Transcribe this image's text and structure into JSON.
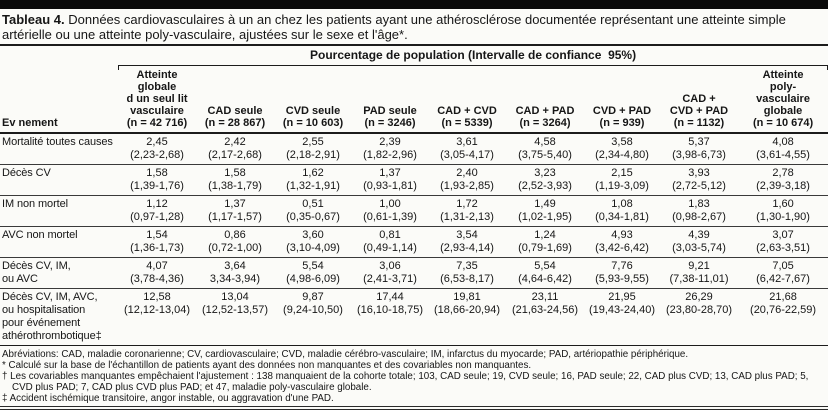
{
  "title": {
    "label": "Tableau 4.",
    "text": "Données cardiovasculaires à un an chez les patients ayant une athérosclérose documentée représentant une atteinte simple artérielle ou une atteinte poly-vasculaire, ajustées sur le sexe et l'âge*."
  },
  "table": {
    "spanner": "Pourcentage de population (Intervalle de confiance  95%)",
    "row_header": "Ev nement",
    "columns": [
      "Atteinte\nglobale\nd un seul lit\nvasculaire\n(n = 42 716)",
      "CAD seule\n(n = 28 867)",
      "CVD seule\n(n = 10 603)",
      "PAD seule\n(n = 3246)",
      "CAD + CVD\n(n = 5339)",
      "CAD + PAD\n(n = 3264)",
      "CVD + PAD\n(n = 939)",
      "CAD +\nCVD + PAD\n(n = 1132)",
      "Atteinte\npoly-\nvasculaire\nglobale\n(n = 10 674)"
    ],
    "rows": [
      {
        "label": "Mortalité toutes causes",
        "cells": [
          [
            "2,45",
            "(2,23-2,68)"
          ],
          [
            "2,42",
            "(2,17-2,68)"
          ],
          [
            "2,55",
            "(2,18-2,91)"
          ],
          [
            "2,39",
            "(1,82-2,96)"
          ],
          [
            "3,61",
            "(3,05-4,17)"
          ],
          [
            "4,58",
            "(3,75-5,40)"
          ],
          [
            "3,58",
            "(2,34-4,80)"
          ],
          [
            "5,37",
            "(3,98-6,73)"
          ],
          [
            "4,08",
            "(3,61-4,55)"
          ]
        ]
      },
      {
        "label": "Décès CV",
        "cells": [
          [
            "1,58",
            "(1,39-1,76)"
          ],
          [
            "1,58",
            "(1,38-1,79)"
          ],
          [
            "1,62",
            "(1,32-1,91)"
          ],
          [
            "1,37",
            "(0,93-1,81)"
          ],
          [
            "2,40",
            "(1,93-2,85)"
          ],
          [
            "3,23",
            "(2,52-3,93)"
          ],
          [
            "2,15",
            "(1,19-3,09)"
          ],
          [
            "3,93",
            "(2,72-5,12)"
          ],
          [
            "2,78",
            "(2,39-3,18)"
          ]
        ]
      },
      {
        "label": "IM non mortel",
        "cells": [
          [
            "1,12",
            "(0,97-1,28)"
          ],
          [
            "1,37",
            "(1,17-1,57)"
          ],
          [
            "0,51",
            "(0,35-0,67)"
          ],
          [
            "1,00",
            "(0,61-1,39)"
          ],
          [
            "1,72",
            "(1,31-2,13)"
          ],
          [
            "1,49",
            "(1,02-1,95)"
          ],
          [
            "1,08",
            "(0,34-1,81)"
          ],
          [
            "1,83",
            "(0,98-2,67)"
          ],
          [
            "1,60",
            "(1,30-1,90)"
          ]
        ]
      },
      {
        "label": "AVC non mortel",
        "cells": [
          [
            "1,54",
            "(1,36-1,73)"
          ],
          [
            "0,86",
            "(0,72-1,00)"
          ],
          [
            "3,60",
            "(3,10-4,09)"
          ],
          [
            "0,81",
            "(0,49-1,14)"
          ],
          [
            "3,54",
            "(2,93-4,14)"
          ],
          [
            "1,24",
            "(0,79-1,69)"
          ],
          [
            "4,93",
            "(3,42-6,42)"
          ],
          [
            "4,39",
            "(3,03-5,74)"
          ],
          [
            "3,07",
            "(2,63-3,51)"
          ]
        ]
      },
      {
        "label": "Décès CV, IM,\nou AVC",
        "cells": [
          [
            "4,07",
            "(3,78-4,36)"
          ],
          [
            "3,64",
            "3,34-3,94)"
          ],
          [
            "5,54",
            "(4,98-6,09)"
          ],
          [
            "3,06",
            "(2,41-3,71)"
          ],
          [
            "7,35",
            "(6,53-8,17)"
          ],
          [
            "5,54",
            "(4,64-6,42)"
          ],
          [
            "7,76",
            "(5,93-9,55)"
          ],
          [
            "9,21",
            "(7,38-11,01)"
          ],
          [
            "7,05",
            "(6,42-7,67)"
          ]
        ]
      },
      {
        "label": "Décès CV, IM, AVC,\nou hospitalisation\npour événement\nathérothrombotique‡",
        "cells": [
          [
            "12,58",
            "(12,12-13,04)"
          ],
          [
            "13,04",
            "(12,52-13,57)"
          ],
          [
            "9,87",
            "(9,24-10,50)"
          ],
          [
            "17,44",
            "(16,10-18,75)"
          ],
          [
            "19,81",
            "(18,66-20,94)"
          ],
          [
            "23,11",
            "(21,63-24,56)"
          ],
          [
            "21,95",
            "(19,43-24,40)"
          ],
          [
            "26,29",
            "(23,80-28,70)"
          ],
          [
            "21,68",
            "(20,76-22,59)"
          ]
        ]
      }
    ]
  },
  "footnotes": [
    "Abréviations: CAD, maladie coronarienne; CV, cardiovasculaire; CVD, maladie cérébro-vasculaire; IM, infarctus du myocarde; PAD, artériopathie périphérique.",
    "* Calculé sur la base de l'échantillon de patients ayant des données non manquantes et des covariables non manquantes.",
    "† Les covariables manquantes empêchaient l'ajustement : 138 manquaient de la cohorte totale; 103, CAD seule; 19, CVD seule; 16, PAD seule; 22, CAD plus CVD; 13, CAD plus PAD; 5, CVD plus PAD; 7, CAD plus CVD plus PAD; et 47, maladie poly-vasculaire globale.",
    "‡ Accident ischémique transitoire, angor instable, ou aggravation d'une PAD."
  ]
}
